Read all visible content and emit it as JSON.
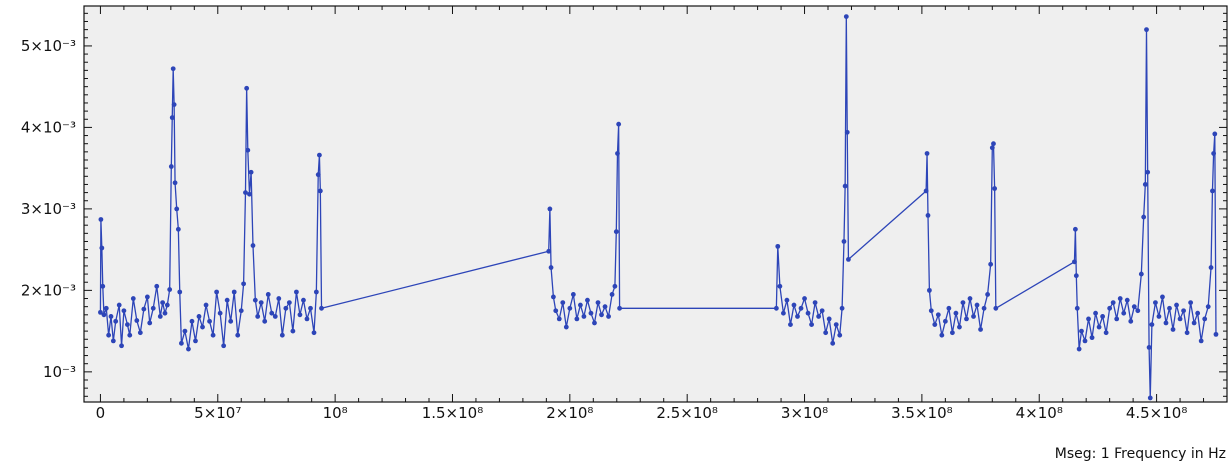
{
  "chart_data": {
    "type": "line",
    "xlabel": "Mseg: 1 Frequency in Hz",
    "ylabel": "",
    "xlim": [
      -7000000,
      480000000
    ],
    "ylim": [
      0.00063,
      0.00549
    ],
    "grid": false,
    "colors": {
      "background": "#efefef",
      "series": "#2d45b8",
      "frame": "#111111"
    },
    "x_ticks": [
      {
        "value": 0,
        "label": "0"
      },
      {
        "value": 50000000,
        "label": "5×10⁷"
      },
      {
        "value": 100000000,
        "label": "10⁸"
      },
      {
        "value": 150000000,
        "label": "1.5×10⁸"
      },
      {
        "value": 200000000,
        "label": "2×10⁸"
      },
      {
        "value": 250000000,
        "label": "2.5×10⁸"
      },
      {
        "value": 300000000,
        "label": "3×10⁸"
      },
      {
        "value": 350000000,
        "label": "3.5×10⁸"
      },
      {
        "value": 400000000,
        "label": "4×10⁸"
      },
      {
        "value": 450000000,
        "label": "4.5×10⁸"
      }
    ],
    "y_ticks": [
      {
        "value": 0.001,
        "label": "10⁻³"
      },
      {
        "value": 0.002,
        "label": "2×10⁻³"
      },
      {
        "value": 0.003,
        "label": "3×10⁻³"
      },
      {
        "value": 0.004,
        "label": "4×10⁻³"
      },
      {
        "value": 0.005,
        "label": "5×10⁻³"
      }
    ],
    "series": [
      {
        "values": [
          [
            0,
            0.00173
          ],
          [
            200000,
            0.00287
          ],
          [
            600000,
            0.00252
          ],
          [
            1000000,
            0.00205
          ],
          [
            1500000,
            0.0017
          ],
          [
            2500000,
            0.00178
          ],
          [
            3500000,
            0.00145
          ],
          [
            4500000,
            0.00168
          ],
          [
            5500000,
            0.00138
          ],
          [
            6500000,
            0.00162
          ],
          [
            8000000,
            0.00182
          ],
          [
            9000000,
            0.00132
          ],
          [
            10000000,
            0.00175
          ],
          [
            11500000,
            0.00158
          ],
          [
            12500000,
            0.00145
          ],
          [
            14000000,
            0.0019
          ],
          [
            15500000,
            0.00163
          ],
          [
            17000000,
            0.00148
          ],
          [
            18500000,
            0.00177
          ],
          [
            20000000,
            0.00192
          ],
          [
            21000000,
            0.0016
          ],
          [
            22500000,
            0.00178
          ],
          [
            24000000,
            0.00205
          ],
          [
            25500000,
            0.00168
          ],
          [
            26500000,
            0.00185
          ],
          [
            27500000,
            0.00172
          ],
          [
            28500000,
            0.00182
          ],
          [
            29500000,
            0.00201
          ],
          [
            30200000,
            0.00352
          ],
          [
            30600000,
            0.00412
          ],
          [
            31000000,
            0.00472
          ],
          [
            31400000,
            0.00428
          ],
          [
            31800000,
            0.00332
          ],
          [
            32500000,
            0.003
          ],
          [
            33200000,
            0.00275
          ],
          [
            33800000,
            0.00198
          ],
          [
            34500000,
            0.00135
          ],
          [
            36000000,
            0.0015
          ],
          [
            37500000,
            0.00128
          ],
          [
            39000000,
            0.00162
          ],
          [
            40500000,
            0.00138
          ],
          [
            42000000,
            0.00168
          ],
          [
            43500000,
            0.00155
          ],
          [
            45000000,
            0.00182
          ],
          [
            46500000,
            0.00162
          ],
          [
            48000000,
            0.00145
          ],
          [
            49500000,
            0.00198
          ],
          [
            51000000,
            0.00172
          ],
          [
            52500000,
            0.00132
          ],
          [
            54000000,
            0.00188
          ],
          [
            55500000,
            0.00162
          ],
          [
            57000000,
            0.00198
          ],
          [
            58500000,
            0.00145
          ],
          [
            60000000,
            0.00175
          ],
          [
            61000000,
            0.00208
          ],
          [
            61800000,
            0.0032
          ],
          [
            62300000,
            0.00448
          ],
          [
            62800000,
            0.00372
          ],
          [
            63500000,
            0.00318
          ],
          [
            64200000,
            0.00345
          ],
          [
            65000000,
            0.00255
          ],
          [
            66000000,
            0.00188
          ],
          [
            67000000,
            0.00168
          ],
          [
            68500000,
            0.00185
          ],
          [
            70000000,
            0.00162
          ],
          [
            71500000,
            0.00195
          ],
          [
            73000000,
            0.00172
          ],
          [
            74500000,
            0.00168
          ],
          [
            76000000,
            0.0019
          ],
          [
            77500000,
            0.00145
          ],
          [
            79000000,
            0.00178
          ],
          [
            80500000,
            0.00185
          ],
          [
            82000000,
            0.0015
          ],
          [
            83500000,
            0.00198
          ],
          [
            85000000,
            0.0017
          ],
          [
            86500000,
            0.00188
          ],
          [
            88000000,
            0.00165
          ],
          [
            89500000,
            0.00178
          ],
          [
            91000000,
            0.00148
          ],
          [
            92000000,
            0.00198
          ],
          [
            92800000,
            0.00342
          ],
          [
            93300000,
            0.00366
          ],
          [
            93700000,
            0.00322
          ],
          [
            94200000,
            0.00178
          ],
          [
            191000000,
            0.00248
          ],
          [
            191500000,
            0.003
          ],
          [
            192000000,
            0.00228
          ],
          [
            193000000,
            0.00192
          ],
          [
            194000000,
            0.00175
          ],
          [
            195500000,
            0.00165
          ],
          [
            197000000,
            0.00185
          ],
          [
            198500000,
            0.00155
          ],
          [
            200000000,
            0.00178
          ],
          [
            201500000,
            0.00195
          ],
          [
            203000000,
            0.00165
          ],
          [
            204500000,
            0.00182
          ],
          [
            206000000,
            0.00168
          ],
          [
            207500000,
            0.00188
          ],
          [
            209000000,
            0.00172
          ],
          [
            210500000,
            0.0016
          ],
          [
            212000000,
            0.00185
          ],
          [
            213500000,
            0.0017
          ],
          [
            215000000,
            0.0018
          ],
          [
            216500000,
            0.00168
          ],
          [
            218000000,
            0.00195
          ],
          [
            219200000,
            0.00205
          ],
          [
            219800000,
            0.00272
          ],
          [
            220300000,
            0.00368
          ],
          [
            220800000,
            0.00404
          ],
          [
            221200000,
            0.00178
          ],
          [
            288000000,
            0.00178
          ],
          [
            288600000,
            0.00254
          ],
          [
            289500000,
            0.00205
          ],
          [
            291000000,
            0.00172
          ],
          [
            292500000,
            0.00188
          ],
          [
            294000000,
            0.00158
          ],
          [
            295500000,
            0.00182
          ],
          [
            297000000,
            0.00168
          ],
          [
            298500000,
            0.00178
          ],
          [
            300000000,
            0.0019
          ],
          [
            301500000,
            0.00172
          ],
          [
            303000000,
            0.00158
          ],
          [
            304500000,
            0.00185
          ],
          [
            306000000,
            0.00168
          ],
          [
            307500000,
            0.00175
          ],
          [
            309000000,
            0.00148
          ],
          [
            310500000,
            0.00165
          ],
          [
            312000000,
            0.00135
          ],
          [
            313500000,
            0.00158
          ],
          [
            315000000,
            0.00145
          ],
          [
            316000000,
            0.00178
          ],
          [
            316800000,
            0.0026
          ],
          [
            317300000,
            0.00328
          ],
          [
            317800000,
            0.00536
          ],
          [
            318200000,
            0.00394
          ],
          [
            318700000,
            0.00238
          ],
          [
            351800000,
            0.00322
          ],
          [
            352200000,
            0.00368
          ],
          [
            352600000,
            0.00292
          ],
          [
            353200000,
            0.002
          ],
          [
            354000000,
            0.00175
          ],
          [
            355500000,
            0.00158
          ],
          [
            357000000,
            0.0017
          ],
          [
            358500000,
            0.00145
          ],
          [
            360000000,
            0.00162
          ],
          [
            361500000,
            0.00178
          ],
          [
            363000000,
            0.00148
          ],
          [
            364500000,
            0.00172
          ],
          [
            366000000,
            0.00155
          ],
          [
            367500000,
            0.00185
          ],
          [
            369000000,
            0.00165
          ],
          [
            370500000,
            0.0019
          ],
          [
            372000000,
            0.00168
          ],
          [
            373500000,
            0.00182
          ],
          [
            375000000,
            0.00152
          ],
          [
            376500000,
            0.00178
          ],
          [
            378000000,
            0.00195
          ],
          [
            379300000,
            0.00232
          ],
          [
            380000000,
            0.00375
          ],
          [
            380500000,
            0.0038
          ],
          [
            381000000,
            0.00325
          ],
          [
            381500000,
            0.00178
          ],
          [
            415000000,
            0.00235
          ],
          [
            415400000,
            0.00275
          ],
          [
            415800000,
            0.00218
          ],
          [
            416200000,
            0.00178
          ],
          [
            417000000,
            0.00128
          ],
          [
            418000000,
            0.0015
          ],
          [
            419500000,
            0.00138
          ],
          [
            421000000,
            0.00165
          ],
          [
            422500000,
            0.00142
          ],
          [
            424000000,
            0.00172
          ],
          [
            425500000,
            0.00155
          ],
          [
            427000000,
            0.00168
          ],
          [
            428500000,
            0.00148
          ],
          [
            430000000,
            0.00178
          ],
          [
            431500000,
            0.00185
          ],
          [
            433000000,
            0.00165
          ],
          [
            434500000,
            0.0019
          ],
          [
            436000000,
            0.00172
          ],
          [
            437500000,
            0.00188
          ],
          [
            439000000,
            0.00162
          ],
          [
            440500000,
            0.0018
          ],
          [
            442000000,
            0.00175
          ],
          [
            443500000,
            0.0022
          ],
          [
            444500000,
            0.0029
          ],
          [
            445200000,
            0.0033
          ],
          [
            445700000,
            0.0052
          ],
          [
            446200000,
            0.00345
          ],
          [
            446800000,
            0.0013
          ],
          [
            447300000,
            0.00068
          ],
          [
            448000000,
            0.00158
          ],
          [
            449500000,
            0.00185
          ],
          [
            451000000,
            0.00168
          ],
          [
            452500000,
            0.00192
          ],
          [
            454000000,
            0.0016
          ],
          [
            455500000,
            0.00178
          ],
          [
            457000000,
            0.00152
          ],
          [
            458500000,
            0.00182
          ],
          [
            460000000,
            0.00165
          ],
          [
            461500000,
            0.00175
          ],
          [
            463000000,
            0.00148
          ],
          [
            464500000,
            0.00185
          ],
          [
            466000000,
            0.0016
          ],
          [
            467500000,
            0.00172
          ],
          [
            469000000,
            0.00138
          ],
          [
            470500000,
            0.00165
          ],
          [
            472000000,
            0.0018
          ],
          [
            473200000,
            0.00228
          ],
          [
            473800000,
            0.00322
          ],
          [
            474300000,
            0.00368
          ],
          [
            474800000,
            0.00392
          ],
          [
            475300000,
            0.00146
          ]
        ]
      }
    ]
  }
}
